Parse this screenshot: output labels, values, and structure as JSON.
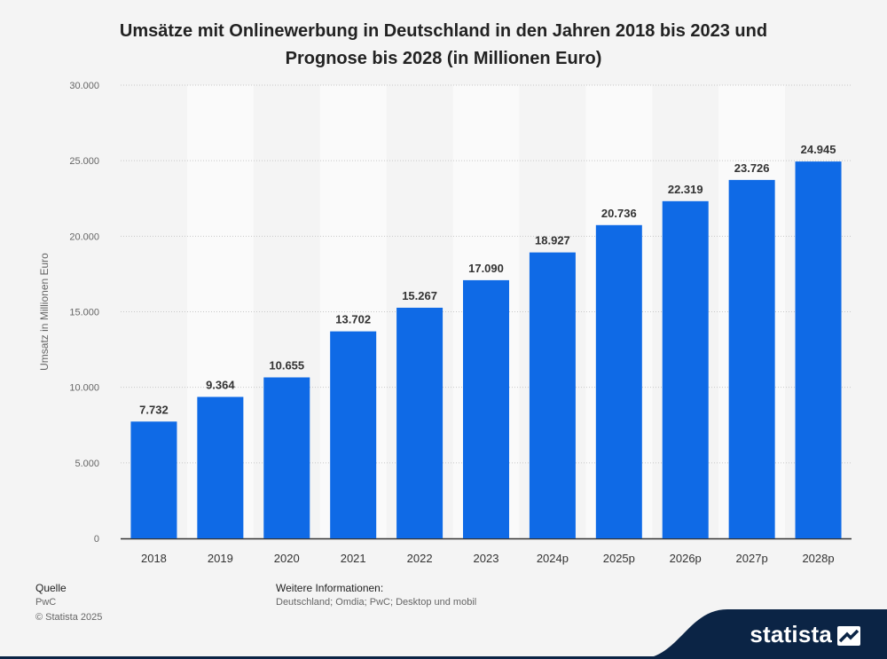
{
  "header": {
    "title_line1": "Umsätze mit Onlinewerbung in Deutschland in den Jahren 2018 bis 2023 und",
    "title_line2": "Prognose bis 2028 (in Millionen Euro)"
  },
  "footer": {
    "source_label": "Quelle",
    "source_value": "PwC",
    "copyright": "© Statista 2025",
    "info_label": "Weitere Informationen:",
    "info_value": "Deutschland; Omdia; PwC; Desktop und mobil"
  },
  "brand": {
    "name": "statista",
    "icon": "statista-logo-icon"
  },
  "colors": {
    "bar": "#0f6ae6",
    "background": "#f4f4f4",
    "band": "#fafafa",
    "brand_bg": "#0b2445"
  },
  "chart_data": {
    "type": "bar",
    "title": "Umsätze mit Onlinewerbung in Deutschland in den Jahren 2018 bis 2023 und Prognose bis 2028 (in Millionen Euro)",
    "xlabel": "",
    "ylabel": "Umsatz in Millionen Euro",
    "categories": [
      "2018",
      "2019",
      "2020",
      "2021",
      "2022",
      "2023",
      "2024p",
      "2025p",
      "2026p",
      "2027p",
      "2028p"
    ],
    "values": [
      7732,
      9364,
      10655,
      13702,
      15267,
      17090,
      18927,
      20736,
      22319,
      23726,
      24945
    ],
    "value_labels": [
      "7.732",
      "9.364",
      "10.655",
      "13.702",
      "15.267",
      "17.090",
      "18.927",
      "20.736",
      "22.319",
      "23.726",
      "24.945"
    ],
    "ylim": [
      0,
      30000
    ],
    "yticks": [
      0,
      5000,
      10000,
      15000,
      20000,
      25000,
      30000
    ],
    "ytick_labels": [
      "0",
      "5.000",
      "10.000",
      "15.000",
      "20.000",
      "25.000",
      "30.000"
    ],
    "grid": true,
    "legend": "none"
  }
}
